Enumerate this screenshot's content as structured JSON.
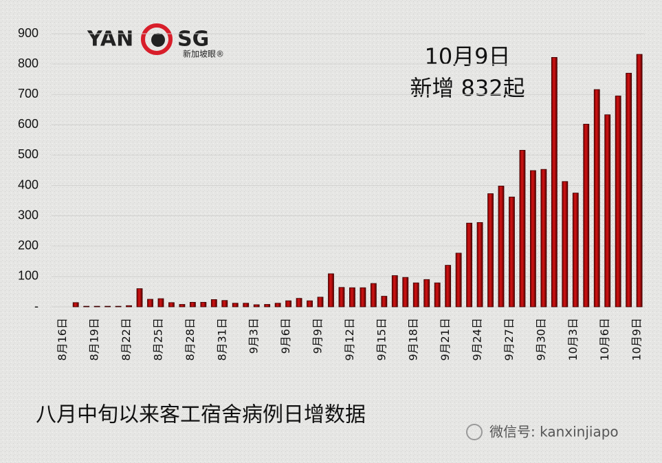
{
  "logo": {
    "left": "YAN",
    "right": "SG",
    "tagline": "新加坡眼®"
  },
  "watermark": "微信号: kanxinjiapo",
  "chart_data": {
    "type": "bar",
    "title": "八月中旬以来客工宿舍病例日增数据",
    "annotations": [
      "10月9日",
      "新增 832起"
    ],
    "categories": [
      "8月16日",
      null,
      null,
      "8月19日",
      null,
      null,
      "8月22日",
      null,
      null,
      "8月25日",
      null,
      null,
      "8月28日",
      null,
      null,
      "8月31日",
      null,
      null,
      "9月3日",
      null,
      null,
      "9月6日",
      null,
      null,
      "9月9日",
      null,
      null,
      "9月12日",
      null,
      null,
      "9月15日",
      null,
      null,
      "9月18日",
      null,
      null,
      "9月21日",
      null,
      null,
      "9月24日",
      null,
      null,
      "9月27日",
      null,
      null,
      "9月30日",
      null,
      null,
      "10月3日",
      null,
      null,
      "10月6日",
      null,
      null,
      "10月9日"
    ],
    "values": [
      0,
      14,
      2,
      2,
      2,
      2,
      4,
      60,
      25,
      27,
      14,
      8,
      15,
      15,
      24,
      21,
      12,
      12,
      7,
      8,
      12,
      20,
      28,
      20,
      32,
      109,
      64,
      63,
      63,
      77,
      35,
      103,
      97,
      79,
      90,
      79,
      137,
      177,
      276,
      278,
      373,
      398,
      362,
      516,
      449,
      453,
      822,
      413,
      375,
      602,
      716,
      633,
      695,
      770,
      832
    ],
    "color": "#b40000",
    "ylim": [
      0,
      900
    ],
    "yticks": [
      {
        "value": 0,
        "label": "-"
      },
      100,
      200,
      300,
      400,
      500,
      600,
      700,
      800,
      900
    ],
    "grid": true
  }
}
